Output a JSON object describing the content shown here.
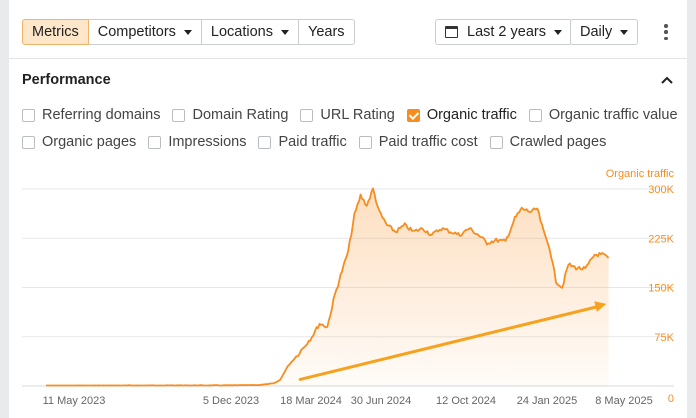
{
  "toolbar": {
    "tabs": [
      {
        "label": "Metrics",
        "active": true,
        "dropdown": false
      },
      {
        "label": "Competitors",
        "active": false,
        "dropdown": true
      },
      {
        "label": "Locations",
        "active": false,
        "dropdown": true
      },
      {
        "label": "Years",
        "active": false,
        "dropdown": false
      }
    ],
    "period_label": "Last 2 years",
    "interval_label": "Daily"
  },
  "performance": {
    "title": "Performance",
    "metrics_row1": [
      {
        "label": "Referring domains",
        "checked": false
      },
      {
        "label": "Domain Rating",
        "checked": false
      },
      {
        "label": "URL Rating",
        "checked": false
      },
      {
        "label": "Organic traffic",
        "checked": true
      },
      {
        "label": "Organic traffic value",
        "checked": false
      }
    ],
    "metrics_row2": [
      {
        "label": "Organic pages",
        "checked": false
      },
      {
        "label": "Impressions",
        "checked": false
      },
      {
        "label": "Paid traffic",
        "checked": false
      },
      {
        "label": "Paid traffic cost",
        "checked": false
      },
      {
        "label": "Crawled pages",
        "checked": false
      }
    ]
  },
  "colors": {
    "accent": "#f78c1f",
    "accent_light": "#fde7c8",
    "grid": "#e6e7ea"
  },
  "chart_data": {
    "type": "area",
    "series": [
      {
        "name": "Organic traffic",
        "color": "#f78c1f"
      }
    ],
    "series_label": "Organic traffic",
    "x_ticks": [
      "11 May 2023",
      "5 Dec 2023",
      "18 Mar 2024",
      "30 Jun 2024",
      "12 Oct 2024",
      "24 Jan 2025",
      "8 May 2025"
    ],
    "y_ticks": [
      "300K",
      "225K",
      "150K",
      "75K",
      "0"
    ],
    "ylim": [
      0,
      300000
    ],
    "grid": true,
    "points": [
      [
        "2023-05-21",
        500
      ],
      [
        "2023-08-01",
        700
      ],
      [
        "2023-10-01",
        800
      ],
      [
        "2023-12-05",
        900
      ],
      [
        "2024-01-15",
        1000
      ],
      [
        "2024-02-20",
        1500
      ],
      [
        "2024-03-10",
        4000
      ],
      [
        "2024-03-18",
        9000
      ],
      [
        "2024-03-28",
        30000
      ],
      [
        "2024-04-08",
        45000
      ],
      [
        "2024-04-18",
        60000
      ],
      [
        "2024-04-28",
        75000
      ],
      [
        "2024-05-08",
        95000
      ],
      [
        "2024-05-18",
        90000
      ],
      [
        "2024-05-28",
        140000
      ],
      [
        "2024-06-06",
        175000
      ],
      [
        "2024-06-14",
        205000
      ],
      [
        "2024-06-22",
        260000
      ],
      [
        "2024-06-30",
        290000
      ],
      [
        "2024-07-08",
        275000
      ],
      [
        "2024-07-16",
        300000
      ],
      [
        "2024-07-24",
        265000
      ],
      [
        "2024-08-03",
        245000
      ],
      [
        "2024-08-14",
        235000
      ],
      [
        "2024-08-26",
        245000
      ],
      [
        "2024-09-06",
        235000
      ],
      [
        "2024-09-18",
        240000
      ],
      [
        "2024-09-30",
        230000
      ],
      [
        "2024-10-12",
        240000
      ],
      [
        "2024-10-24",
        235000
      ],
      [
        "2024-11-05",
        230000
      ],
      [
        "2024-11-17",
        240000
      ],
      [
        "2024-11-29",
        230000
      ],
      [
        "2024-12-10",
        218000
      ],
      [
        "2024-12-22",
        222000
      ],
      [
        "2025-01-03",
        220000
      ],
      [
        "2025-01-15",
        255000
      ],
      [
        "2025-01-24",
        270000
      ],
      [
        "2025-02-05",
        265000
      ],
      [
        "2025-02-13",
        270000
      ],
      [
        "2025-02-21",
        235000
      ],
      [
        "2025-03-01",
        210000
      ],
      [
        "2025-03-09",
        160000
      ],
      [
        "2025-03-17",
        150000
      ],
      [
        "2025-03-25",
        185000
      ],
      [
        "2025-04-04",
        180000
      ],
      [
        "2025-04-16",
        178000
      ],
      [
        "2025-04-28",
        200000
      ],
      [
        "2025-05-08",
        200000
      ],
      [
        "2025-05-16",
        195000
      ]
    ],
    "trend_arrow": {
      "from": [
        "2024-04-13",
        10000
      ],
      "to": [
        "2025-05-13",
        125000
      ]
    }
  }
}
